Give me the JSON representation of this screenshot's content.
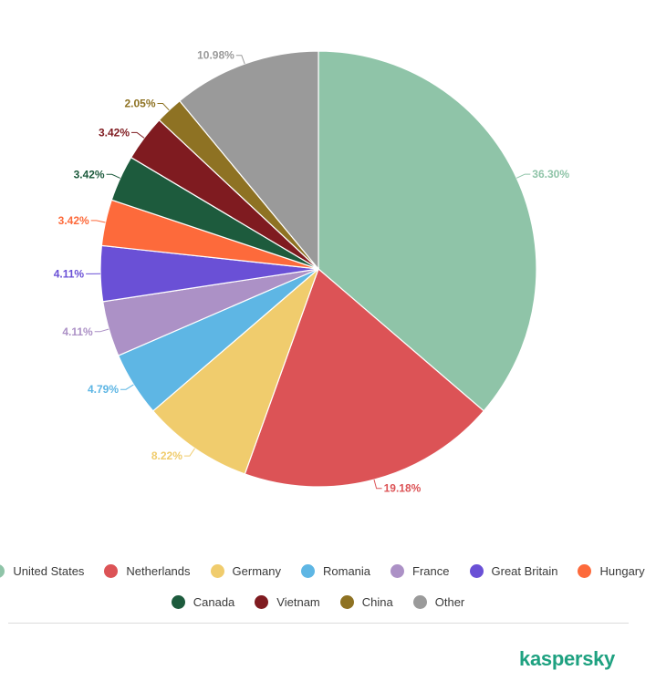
{
  "chart_data": {
    "type": "pie",
    "slices": [
      {
        "label": "United States",
        "value": 36.3,
        "display": "36.30%",
        "color": "#8fc4a8"
      },
      {
        "label": "Netherlands",
        "value": 19.18,
        "display": "19.18%",
        "color": "#dc5356"
      },
      {
        "label": "Germany",
        "value": 8.22,
        "display": "8.22%",
        "color": "#f0cc6d"
      },
      {
        "label": "Romania",
        "value": 4.79,
        "display": "4.79%",
        "color": "#5eb6e4"
      },
      {
        "label": "France",
        "value": 4.11,
        "display": "4.11%",
        "color": "#ac91c6"
      },
      {
        "label": "Great Britain",
        "value": 4.11,
        "display": "4.11%",
        "color": "#6a50d6"
      },
      {
        "label": "Hungary",
        "value": 3.42,
        "display": "3.42%",
        "color": "#fd6a3b"
      },
      {
        "label": "Canada",
        "value": 3.42,
        "display": "3.42%",
        "color": "#1d5b3d"
      },
      {
        "label": "Vietnam",
        "value": 3.42,
        "display": "3.42%",
        "color": "#7f1b20"
      },
      {
        "label": "China",
        "value": 2.05,
        "display": "2.05%",
        "color": "#8e7223"
      },
      {
        "label": "Other",
        "value": 10.98,
        "display": "10.98%",
        "color": "#9a9a9a"
      }
    ],
    "legend_position": "bottom",
    "title": ""
  },
  "legend": {
    "row1": [
      {
        "label": "United States",
        "color": "#8fc4a8"
      },
      {
        "label": "Netherlands",
        "color": "#dc5356"
      },
      {
        "label": "Germany",
        "color": "#f0cc6d"
      },
      {
        "label": "Romania",
        "color": "#5eb6e4"
      },
      {
        "label": "France",
        "color": "#ac91c6"
      },
      {
        "label": "Great Britain",
        "color": "#6a50d6"
      },
      {
        "label": "Hungary",
        "color": "#fd6a3b"
      }
    ],
    "row2": [
      {
        "label": "Canada",
        "color": "#1d5b3d"
      },
      {
        "label": "Vietnam",
        "color": "#7f1b20"
      },
      {
        "label": "China",
        "color": "#8e7223"
      },
      {
        "label": "Other",
        "color": "#9a9a9a"
      }
    ]
  },
  "branding": {
    "logo_text": "kaspersky",
    "logo_color": "#1ea180"
  }
}
